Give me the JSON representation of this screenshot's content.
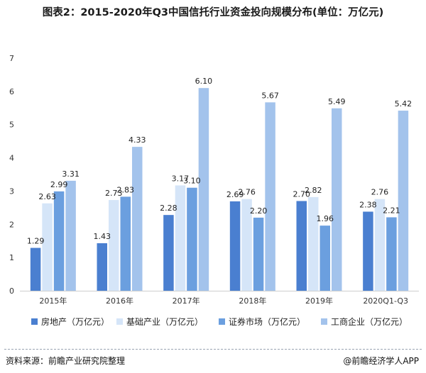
{
  "title": "图表2：2015-2020年Q3中国信托行业资金投向规模分布(单位：万亿元)",
  "footer": {
    "source": "资料来源：前瞻产业研究院整理",
    "credit": "@前瞻经济学人APP"
  },
  "colors": {
    "series": [
      "#4a7fd0",
      "#d5e5f8",
      "#6b9fdf",
      "#a3c3ec"
    ]
  },
  "chart_data": {
    "type": "bar",
    "categories": [
      "2015年",
      "2016年",
      "2017年",
      "2018年",
      "2019年",
      "2020Q1-Q3"
    ],
    "series": [
      {
        "name": "房地产（万亿元）",
        "values": [
          1.29,
          1.43,
          2.28,
          2.69,
          2.7,
          2.38
        ]
      },
      {
        "name": "基础产业（万亿元）",
        "values": [
          2.63,
          2.73,
          3.17,
          2.76,
          2.82,
          2.76
        ]
      },
      {
        "name": "证券市场（万亿元）",
        "values": [
          2.99,
          2.83,
          3.1,
          2.2,
          1.96,
          2.21
        ]
      },
      {
        "name": "工商企业（万亿元）",
        "values": [
          3.31,
          4.33,
          6.1,
          5.67,
          5.49,
          5.42
        ]
      }
    ],
    "y_ticks": [
      "0",
      "1",
      "2",
      "3",
      "4",
      "5",
      "6",
      "7"
    ],
    "ylim": [
      0,
      7
    ],
    "legend_position": "bottom",
    "grid": false
  }
}
